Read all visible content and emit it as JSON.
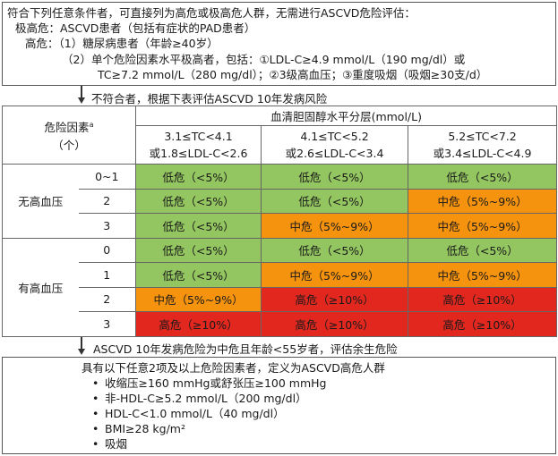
{
  "top": {
    "line1": "符合下列任意条件者，可直接列为高危或极高危人群，无需进行ASCVD危险评估：",
    "line2": "极高危：ASCVD患者（包括有症状的PAD患者）",
    "line3": "高危：（1）糖尿病患者（年龄≥40岁）",
    "line4": "（2）单个危险因素水平极高者，包括：①LDL-C≥4.9 mmol/L（190 mg/dl）或",
    "line5": "TC≥7.2 mmol/L（280 mg/dl）；②3级高血压；③重度吸烟（吸烟≥30支/d）"
  },
  "note1": "不符合者，根据下表评估ASCVD 10年发病风险",
  "table": {
    "factor_header_line1": "危险因素",
    "factor_sup": "a",
    "factor_header_line2": "（个）",
    "chol_header": "血清胆固醇水平分层(mmol/L)",
    "columns": [
      {
        "line1": "3.1≤TC<4.1",
        "line2": "或1.8≤LDL-C<2.6"
      },
      {
        "line1": "4.1≤TC<5.2",
        "line2": "或2.6≤LDL-C<3.4"
      },
      {
        "line1": "5.2≤TC<7.2",
        "line2": "或3.4≤LDL-C<4.9"
      }
    ],
    "groups": [
      {
        "label": "无高血压",
        "rows": [
          {
            "count": "0~1",
            "cells": [
              {
                "text": "低危（<5%）",
                "color": "#93c560"
              },
              {
                "text": "低危（<5%）",
                "color": "#93c560"
              },
              {
                "text": "低危（<5%）",
                "color": "#93c560"
              }
            ]
          },
          {
            "count": "2",
            "cells": [
              {
                "text": "低危（<5%）",
                "color": "#93c560"
              },
              {
                "text": "低危（<5%）",
                "color": "#93c560"
              },
              {
                "text": "中危（5%~9%）",
                "color": "#f5930f"
              }
            ]
          },
          {
            "count": "3",
            "cells": [
              {
                "text": "低危（<5%）",
                "color": "#93c560"
              },
              {
                "text": "中危（5%~9%）",
                "color": "#f5930f"
              },
              {
                "text": "中危（5%~9%）",
                "color": "#f5930f"
              }
            ]
          }
        ]
      },
      {
        "label": "有高血压",
        "rows": [
          {
            "count": "0",
            "cells": [
              {
                "text": "低危（<5%）",
                "color": "#93c560"
              },
              {
                "text": "低危（<5%）",
                "color": "#93c560"
              },
              {
                "text": "低危（<5%）",
                "color": "#93c560"
              }
            ]
          },
          {
            "count": "1",
            "cells": [
              {
                "text": "低危（<5%）",
                "color": "#93c560"
              },
              {
                "text": "中危（5%~9%）",
                "color": "#f5930f"
              },
              {
                "text": "中危（5%~9%）",
                "color": "#f5930f"
              }
            ]
          },
          {
            "count": "2",
            "cells": [
              {
                "text": "中危（5%~9%）",
                "color": "#f5930f"
              },
              {
                "text": "高危（≥10%）",
                "color": "#e2271f"
              },
              {
                "text": "高危（≥10%）",
                "color": "#e2271f"
              }
            ]
          },
          {
            "count": "3",
            "cells": [
              {
                "text": "高危（≥10%）",
                "color": "#e2271f"
              },
              {
                "text": "高危（≥10%）",
                "color": "#e2271f"
              },
              {
                "text": "高危（≥10%）",
                "color": "#e2271f"
              }
            ]
          }
        ]
      }
    ]
  },
  "note2": "ASCVD 10年发病危险为中危且年龄<55岁者，评估余生危险",
  "bottom": {
    "title": "具有以下任意2项及以上危险因素者，定义为ASCVD高危人群",
    "bullet_symbol": "•",
    "items": [
      "收缩压≥160 mmHg或舒张压≥100 mmHg",
      "非-HDL-C≥5.2 mmol/L（200 mg/dl）",
      "HDL-C<1.0 mmol/L（40 mg/dl）",
      "BMI≥28 kg/m²",
      "吸烟"
    ]
  }
}
